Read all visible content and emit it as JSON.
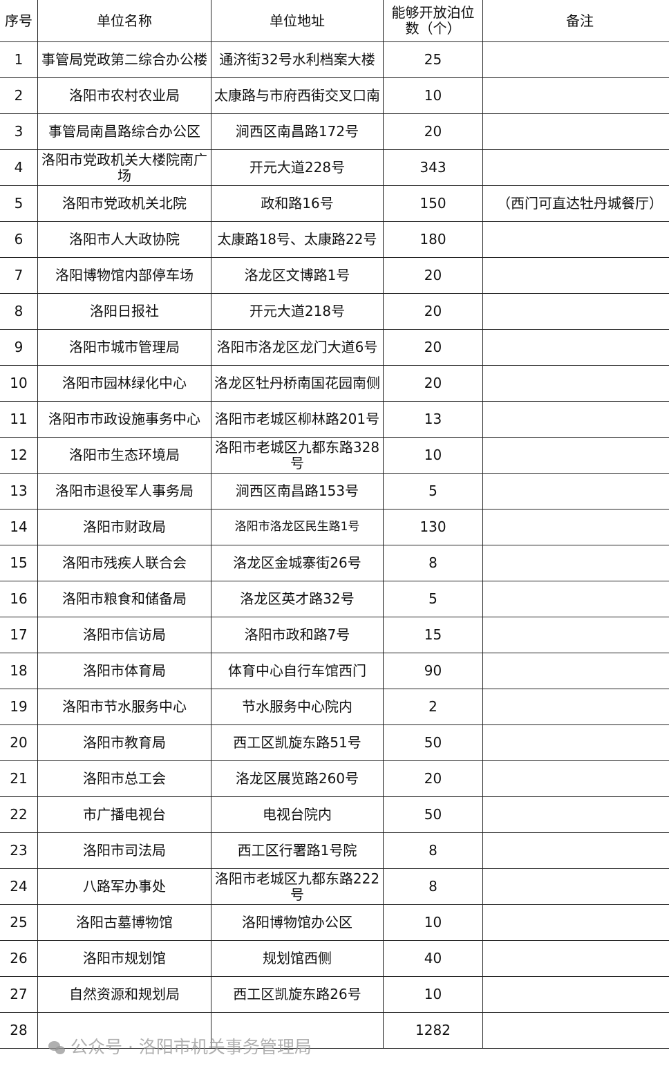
{
  "headers": [
    "序号",
    "单位名称",
    "单位地址",
    "能够开放泊位数（个）",
    "备注"
  ],
  "rows": [
    {
      "no": "1",
      "name": "事管局党政第二综合办公楼",
      "address": "通济街32号水利档案大楼",
      "spaces": "25",
      "note": ""
    },
    {
      "no": "2",
      "name": "洛阳市农村农业局",
      "address": "太康路与市府西街交叉口南",
      "spaces": "10",
      "note": ""
    },
    {
      "no": "3",
      "name": "事管局南昌路综合办公区",
      "address": "涧西区南昌路172号",
      "spaces": "20",
      "note": ""
    },
    {
      "no": "4",
      "name": "洛阳市党政机关大楼院南广场",
      "address": "开元大道228号",
      "spaces": "343",
      "note": ""
    },
    {
      "no": "5",
      "name": "洛阳市党政机关北院",
      "address": "政和路16号",
      "spaces": "150",
      "note": "（西门可直达牡丹城餐厅）"
    },
    {
      "no": "6",
      "name": "洛阳市人大政协院",
      "address": "太康路18号、太康路22号",
      "spaces": "180",
      "note": ""
    },
    {
      "no": "7",
      "name": "洛阳博物馆内部停车场",
      "address": "洛龙区文博路1号",
      "spaces": "20",
      "note": ""
    },
    {
      "no": "8",
      "name": "洛阳日报社",
      "address": "开元大道218号",
      "spaces": "20",
      "note": ""
    },
    {
      "no": "9",
      "name": "洛阳市城市管理局",
      "address": "洛阳市洛龙区龙门大道6号",
      "spaces": "20",
      "note": ""
    },
    {
      "no": "10",
      "name": "洛阳市园林绿化中心",
      "address": "洛龙区牡丹桥南国花园南侧",
      "spaces": "20",
      "note": ""
    },
    {
      "no": "11",
      "name": "洛阳市市政设施事务中心",
      "address": "洛阳市老城区柳林路201号",
      "spaces": "13",
      "note": ""
    },
    {
      "no": "12",
      "name": "洛阳市生态环境局",
      "address": "洛阳市老城区九都东路328号",
      "spaces": "10",
      "note": ""
    },
    {
      "no": "13",
      "name": "洛阳市退役军人事务局",
      "address": "涧西区南昌路153号",
      "spaces": "5",
      "note": ""
    },
    {
      "no": "14",
      "name": "洛阳市财政局",
      "address": "洛阳市洛龙区民生路1号",
      "spaces": "130",
      "note": ""
    },
    {
      "no": "15",
      "name": "洛阳市残疾人联合会",
      "address": "洛龙区金城寨街26号",
      "spaces": "8",
      "note": ""
    },
    {
      "no": "16",
      "name": "洛阳市粮食和储备局",
      "address": "洛龙区英才路32号",
      "spaces": "5",
      "note": ""
    },
    {
      "no": "17",
      "name": "洛阳市信访局",
      "address": "洛阳市政和路7号",
      "spaces": "15",
      "note": ""
    },
    {
      "no": "18",
      "name": "洛阳市体育局",
      "address": "体育中心自行车馆西门",
      "spaces": "90",
      "note": ""
    },
    {
      "no": "19",
      "name": "洛阳市节水服务中心",
      "address": "节水服务中心院内",
      "spaces": "2",
      "note": ""
    },
    {
      "no": "20",
      "name": "洛阳市教育局",
      "address": "西工区凯旋东路51号",
      "spaces": "50",
      "note": ""
    },
    {
      "no": "21",
      "name": "洛阳市总工会",
      "address": "洛龙区展览路260号",
      "spaces": "20",
      "note": ""
    },
    {
      "no": "22",
      "name": "市广播电视台",
      "address": "电视台院内",
      "spaces": "50",
      "note": ""
    },
    {
      "no": "23",
      "name": "洛阳市司法局",
      "address": "西工区行署路1号院",
      "spaces": "8",
      "note": ""
    },
    {
      "no": "24",
      "name": "八路军办事处",
      "address": "洛阳市老城区九都东路222号",
      "spaces": "8",
      "note": ""
    },
    {
      "no": "25",
      "name": "洛阳古墓博物馆",
      "address": "洛阳博物馆办公区",
      "spaces": "10",
      "note": ""
    },
    {
      "no": "26",
      "name": "洛阳市规划馆",
      "address": "规划馆西侧",
      "spaces": "40",
      "note": ""
    },
    {
      "no": "27",
      "name": "自然资源和规划局",
      "address": "西工区凯旋东路26号",
      "spaces": "10",
      "note": ""
    }
  ],
  "total": {
    "no": "28",
    "name": "",
    "address": "",
    "spaces": "1282",
    "note": ""
  },
  "watermark": "公众号 · 洛阳市机关事务管理局"
}
